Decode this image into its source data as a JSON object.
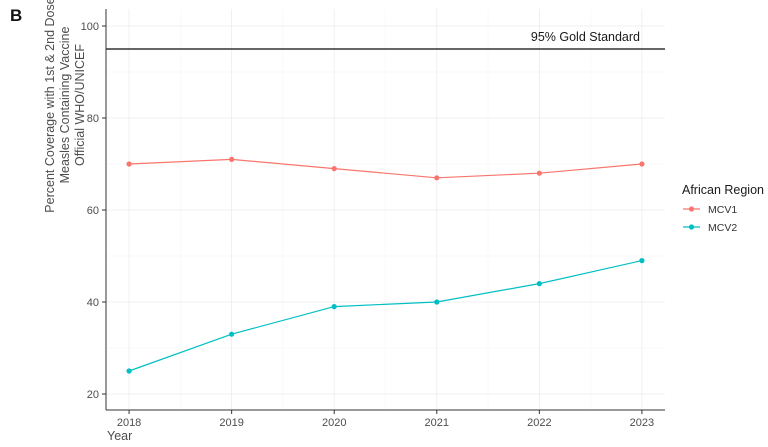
{
  "panel_label": "B",
  "chart_data": {
    "type": "line",
    "title": "",
    "xlabel": "Year",
    "ylabel_lines": [
      "Percent Coverage with 1st & 2nd Dose",
      "Measles Containing Vaccine",
      "Official WHO/UNICEF"
    ],
    "x": [
      2018,
      2019,
      2020,
      2021,
      2022,
      2023
    ],
    "x_ticks": [
      "2018",
      "2019",
      "2020",
      "2021",
      "2022",
      "2023"
    ],
    "ylim": [
      20,
      100
    ],
    "y_ticks": [
      20,
      40,
      60,
      80,
      100
    ],
    "y_tick_labels": [
      "20",
      "40",
      "60",
      "80",
      "100"
    ],
    "grid": true,
    "series": [
      {
        "name": "MCV1",
        "color": "#f8766d",
        "values": [
          70,
          71,
          69,
          67,
          68,
          70
        ]
      },
      {
        "name": "MCV2",
        "color": "#00bfc4",
        "values": [
          25,
          33,
          39,
          40,
          44,
          49
        ]
      }
    ],
    "reference_line": {
      "value": 95,
      "label": "95% Gold Standard",
      "color": "#333333"
    },
    "legend": {
      "title": "African Region",
      "placement": "right"
    }
  }
}
